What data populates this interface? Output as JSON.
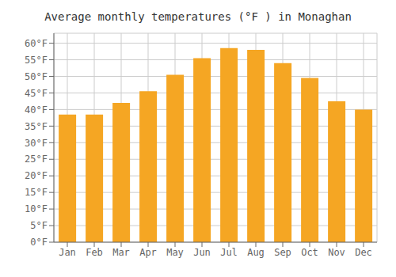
{
  "chart_data": {
    "type": "bar",
    "title": "Average monthly temperatures (°F ) in Monaghan",
    "categories": [
      "Jan",
      "Feb",
      "Mar",
      "Apr",
      "May",
      "Jun",
      "Jul",
      "Aug",
      "Sep",
      "Oct",
      "Nov",
      "Dec"
    ],
    "values": [
      38.5,
      38.5,
      42.0,
      45.5,
      50.5,
      55.5,
      58.5,
      58.0,
      54.0,
      49.5,
      42.5,
      40.0
    ],
    "color": "#F5A623",
    "ylim": [
      0,
      63
    ],
    "yticks": [
      {
        "value": 0,
        "label": "0°F"
      },
      {
        "value": 5,
        "label": "5°F"
      },
      {
        "value": 10,
        "label": "10°F"
      },
      {
        "value": 15,
        "label": "15°F"
      },
      {
        "value": 20,
        "label": "20°F"
      },
      {
        "value": 25,
        "label": "25°F"
      },
      {
        "value": 30,
        "label": "30°F"
      },
      {
        "value": 35,
        "label": "35°F"
      },
      {
        "value": 40,
        "label": "40°F"
      },
      {
        "value": 45,
        "label": "45°F"
      },
      {
        "value": 50,
        "label": "50°F"
      },
      {
        "value": 55,
        "label": "55°F"
      },
      {
        "value": 60,
        "label": "60°F"
      }
    ],
    "grid": true
  }
}
